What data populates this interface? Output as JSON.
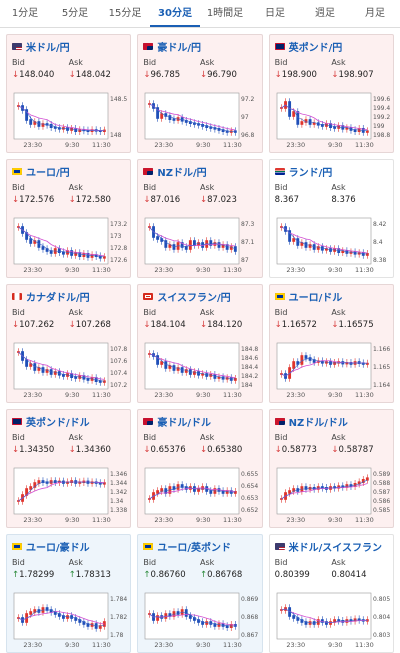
{
  "tabs": [
    {
      "label": "1分足",
      "active": false
    },
    {
      "label": "5分足",
      "active": false
    },
    {
      "label": "15分足",
      "active": false
    },
    {
      "label": "30分足",
      "active": true
    },
    {
      "label": "1時間足",
      "active": false
    },
    {
      "label": "日足",
      "active": false
    },
    {
      "label": "週足",
      "active": false
    },
    {
      "label": "月足",
      "active": false
    }
  ],
  "colors": {
    "accent": "#1a5fb4",
    "down": "#d63a3a",
    "up": "#2a8a3a",
    "candle_up": "#e0342c",
    "candle_down": "#1f4fb8",
    "ma": "#d24fd2",
    "card_pink": "#fdf0f0",
    "card_blue": "#eef5fb"
  },
  "labels": {
    "bid": "Bid",
    "ask": "Ask"
  },
  "pairs": [
    {
      "name": "米ドル/円",
      "flag": "us",
      "bg": "pink",
      "bid": "148.040",
      "ask": "148.042",
      "dir": "down",
      "chart_data": {
        "type": "candlestick",
        "x_ticks": [
          "23:30",
          "9:30",
          "11:30"
        ],
        "y_ticks": [
          "148.5",
          "148"
        ],
        "trend": [
          0.75,
          0.65,
          0.4,
          0.3,
          0.35,
          0.25,
          0.3,
          0.28,
          0.22,
          0.2,
          0.18,
          0.2,
          0.15,
          0.18,
          0.12,
          0.15,
          0.14,
          0.12,
          0.15,
          0.13,
          0.12,
          0.14
        ]
      }
    },
    {
      "name": "豪ドル/円",
      "flag": "au",
      "bg": "pink",
      "bid": "96.785",
      "ask": "96.790",
      "dir": "down",
      "chart_data": {
        "type": "candlestick",
        "x_ticks": [
          "23:30",
          "9:30",
          "11:30"
        ],
        "y_ticks": [
          "97.2",
          "97",
          "96.8"
        ],
        "trend": [
          0.8,
          0.7,
          0.45,
          0.55,
          0.5,
          0.42,
          0.4,
          0.45,
          0.38,
          0.35,
          0.32,
          0.3,
          0.28,
          0.25,
          0.22,
          0.2,
          0.18,
          0.15,
          0.12,
          0.1,
          0.12,
          0.1
        ]
      }
    },
    {
      "name": "英ポンド/円",
      "flag": "gb",
      "bg": "pink",
      "bid": "198.900",
      "ask": "198.907",
      "dir": "down",
      "chart_data": {
        "type": "candlestick",
        "x_ticks": [
          "23:30",
          "9:30",
          "11:30"
        ],
        "y_ticks": [
          "199.6",
          "199.4",
          "199.2",
          "199",
          "198.8"
        ],
        "trend": [
          0.7,
          0.85,
          0.5,
          0.6,
          0.3,
          0.35,
          0.4,
          0.3,
          0.32,
          0.28,
          0.25,
          0.3,
          0.22,
          0.2,
          0.25,
          0.18,
          0.2,
          0.15,
          0.12,
          0.18,
          0.1,
          0.12
        ]
      }
    },
    {
      "name": "ユーロ/円",
      "flag": "eu",
      "bg": "pink",
      "bid": "172.576",
      "ask": "172.580",
      "dir": "down",
      "chart_data": {
        "type": "candlestick",
        "x_ticks": [
          "23:30",
          "9:30",
          "11:30"
        ],
        "y_ticks": [
          "173.2",
          "173",
          "172.8",
          "172.6"
        ],
        "trend": [
          0.85,
          0.7,
          0.55,
          0.45,
          0.5,
          0.35,
          0.3,
          0.25,
          0.2,
          0.3,
          0.22,
          0.18,
          0.25,
          0.15,
          0.2,
          0.12,
          0.18,
          0.1,
          0.15,
          0.12,
          0.08,
          0.1
        ]
      }
    },
    {
      "name": "NZドル/円",
      "flag": "nz",
      "bg": "pink",
      "bid": "87.016",
      "ask": "87.023",
      "dir": "down",
      "chart_data": {
        "type": "candlestick",
        "x_ticks": [
          "23:30",
          "9:30",
          "11:30"
        ],
        "y_ticks": [
          "87.3",
          "87.1",
          "87"
        ],
        "trend": [
          0.85,
          0.6,
          0.55,
          0.5,
          0.35,
          0.4,
          0.3,
          0.45,
          0.35,
          0.3,
          0.5,
          0.4,
          0.45,
          0.35,
          0.5,
          0.4,
          0.45,
          0.35,
          0.4,
          0.3,
          0.35,
          0.25
        ]
      }
    },
    {
      "name": "ランド/円",
      "flag": "za",
      "bg": "white",
      "bid": "8.367",
      "ask": "8.376",
      "dir": "none",
      "chart_data": {
        "type": "candlestick",
        "x_ticks": [
          "23:30",
          "9:30",
          "11:30"
        ],
        "y_ticks": [
          "8.42",
          "8.4",
          "8.38"
        ],
        "trend": [
          0.85,
          0.75,
          0.5,
          0.55,
          0.4,
          0.45,
          0.35,
          0.4,
          0.3,
          0.35,
          0.28,
          0.3,
          0.25,
          0.3,
          0.22,
          0.25,
          0.2,
          0.22,
          0.18,
          0.2,
          0.15,
          0.18
        ]
      }
    },
    {
      "name": "カナダドル/円",
      "flag": "ca",
      "bg": "pink",
      "bid": "107.262",
      "ask": "107.268",
      "dir": "down",
      "chart_data": {
        "type": "candlestick",
        "x_ticks": [
          "23:30",
          "9:30",
          "11:30"
        ],
        "y_ticks": [
          "107.8",
          "107.6",
          "107.4",
          "107.2"
        ],
        "trend": [
          0.85,
          0.65,
          0.5,
          0.55,
          0.4,
          0.45,
          0.35,
          0.4,
          0.3,
          0.35,
          0.28,
          0.25,
          0.3,
          0.22,
          0.2,
          0.25,
          0.18,
          0.15,
          0.2,
          0.12,
          0.1,
          0.12
        ]
      }
    },
    {
      "name": "スイスフラン/円",
      "flag": "ch",
      "bg": "pink",
      "bid": "184.104",
      "ask": "184.120",
      "dir": "down",
      "chart_data": {
        "type": "candlestick",
        "x_ticks": [
          "23:30",
          "9:30",
          "11:30"
        ],
        "y_ticks": [
          "184.8",
          "184.6",
          "184.4",
          "184.2",
          "184"
        ],
        "trend": [
          0.8,
          0.75,
          0.55,
          0.6,
          0.45,
          0.5,
          0.4,
          0.45,
          0.35,
          0.4,
          0.3,
          0.35,
          0.28,
          0.3,
          0.25,
          0.28,
          0.2,
          0.22,
          0.18,
          0.2,
          0.15,
          0.18
        ]
      }
    },
    {
      "name": "ユーロ/ドル",
      "flag": "eu",
      "bg": "pink",
      "bid": "1.16572",
      "ask": "1.16575",
      "dir": "down",
      "chart_data": {
        "type": "candlestick",
        "x_ticks": [
          "23:30",
          "9:30",
          "11:30"
        ],
        "y_ticks": [
          "1.166",
          "1.165",
          "1.164"
        ],
        "trend": [
          0.3,
          0.2,
          0.45,
          0.6,
          0.55,
          0.75,
          0.7,
          0.65,
          0.6,
          0.62,
          0.58,
          0.6,
          0.55,
          0.58,
          0.6,
          0.56,
          0.58,
          0.55,
          0.6,
          0.57,
          0.55,
          0.56
        ]
      }
    },
    {
      "name": "英ポンド/ドル",
      "flag": "gb",
      "bg": "pink",
      "bid": "1.34350",
      "ask": "1.34360",
      "dir": "down",
      "chart_data": {
        "type": "candlestick",
        "x_ticks": [
          "23:30",
          "9:30",
          "11:30"
        ],
        "y_ticks": [
          "1.346",
          "1.344",
          "1.342",
          "1.34",
          "1.338"
        ],
        "trend": [
          0.25,
          0.4,
          0.55,
          0.6,
          0.7,
          0.75,
          0.72,
          0.7,
          0.75,
          0.72,
          0.74,
          0.7,
          0.72,
          0.75,
          0.7,
          0.72,
          0.74,
          0.7,
          0.72,
          0.7,
          0.68,
          0.7
        ]
      }
    },
    {
      "name": "豪ドル/ドル",
      "flag": "au",
      "bg": "pink",
      "bid": "0.65376",
      "ask": "0.65380",
      "dir": "down",
      "chart_data": {
        "type": "candlestick",
        "x_ticks": [
          "23:30",
          "9:30",
          "11:30"
        ],
        "y_ticks": [
          "0.655",
          "0.654",
          "0.653",
          "0.652"
        ],
        "trend": [
          0.3,
          0.45,
          0.5,
          0.55,
          0.45,
          0.6,
          0.55,
          0.65,
          0.6,
          0.55,
          0.6,
          0.5,
          0.55,
          0.6,
          0.5,
          0.45,
          0.55,
          0.5,
          0.45,
          0.5,
          0.45,
          0.48
        ]
      }
    },
    {
      "name": "NZドル/ドル",
      "flag": "nz",
      "bg": "pink",
      "bid": "0.58773",
      "ask": "0.58787",
      "dir": "down",
      "chart_data": {
        "type": "candlestick",
        "x_ticks": [
          "23:30",
          "9:30",
          "11:30"
        ],
        "y_ticks": [
          "0.589",
          "0.588",
          "0.587",
          "0.586",
          "0.585"
        ],
        "trend": [
          0.3,
          0.45,
          0.5,
          0.55,
          0.5,
          0.6,
          0.55,
          0.58,
          0.55,
          0.6,
          0.58,
          0.55,
          0.6,
          0.58,
          0.62,
          0.6,
          0.65,
          0.62,
          0.68,
          0.72,
          0.78,
          0.82
        ]
      }
    },
    {
      "name": "ユーロ/豪ドル",
      "flag": "eu",
      "bg": "blue",
      "bid": "1.78299",
      "ask": "1.78313",
      "dir": "up",
      "chart_data": {
        "type": "candlestick",
        "x_ticks": [
          "23:30",
          "9:30",
          "11:30"
        ],
        "y_ticks": [
          "1.784",
          "1.782",
          "1.78"
        ],
        "trend": [
          0.45,
          0.35,
          0.55,
          0.6,
          0.65,
          0.6,
          0.7,
          0.65,
          0.6,
          0.55,
          0.5,
          0.45,
          0.5,
          0.45,
          0.4,
          0.35,
          0.3,
          0.25,
          0.3,
          0.2,
          0.25,
          0.35
        ]
      }
    },
    {
      "name": "ユーロ/英ポンド",
      "flag": "eu",
      "bg": "blue",
      "bid": "0.86760",
      "ask": "0.86768",
      "dir": "up",
      "chart_data": {
        "type": "candlestick",
        "x_ticks": [
          "23:30",
          "9:30",
          "11:30"
        ],
        "y_ticks": [
          "0.869",
          "0.868",
          "0.867"
        ],
        "trend": [
          0.55,
          0.4,
          0.5,
          0.45,
          0.55,
          0.5,
          0.6,
          0.55,
          0.65,
          0.5,
          0.45,
          0.4,
          0.35,
          0.3,
          0.35,
          0.3,
          0.25,
          0.3,
          0.25,
          0.22,
          0.28,
          0.25
        ]
      }
    },
    {
      "name": "米ドル/スイスフラン",
      "flag": "us",
      "bg": "white",
      "bid": "0.80399",
      "ask": "0.80414",
      "dir": "none",
      "chart_data": {
        "type": "candlestick",
        "x_ticks": [
          "23:30",
          "9:30",
          "11:30"
        ],
        "y_ticks": [
          "0.805",
          "0.804",
          "0.803"
        ],
        "trend": [
          0.65,
          0.7,
          0.5,
          0.45,
          0.4,
          0.35,
          0.3,
          0.35,
          0.3,
          0.4,
          0.35,
          0.3,
          0.35,
          0.4,
          0.38,
          0.35,
          0.4,
          0.38,
          0.42,
          0.4,
          0.38,
          0.4
        ]
      }
    }
  ]
}
